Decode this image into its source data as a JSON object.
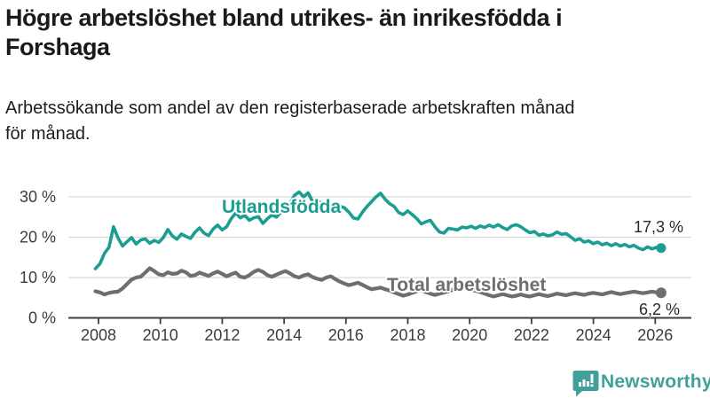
{
  "header": {
    "title_line1": "Högre arbetslöshet bland utrikes- än inrikesfödda i",
    "title_line2": "Forshaga",
    "subtitle_line1": "Arbetssökande som andel av den registerbaserade arbetskraften månad",
    "subtitle_line2": "för månad."
  },
  "branding": {
    "name": "Newsworthy",
    "color": "#41a09a",
    "icon": "bar-chart-speech-bubble-icon"
  },
  "chart_data": {
    "type": "line",
    "title": "Högre arbetslöshet bland utrikes- än inrikesfödda i Forshaga",
    "subtitle": "Arbetssökande som andel av den registerbaserade arbetskraften månad för månad.",
    "grid": "horizontal",
    "legend_position": "inline-labels",
    "colors": {
      "gridline": "#d9d9d9",
      "axis": "#3f3f3f",
      "tick_text": "#3c3c3c"
    },
    "x_axis": {
      "ticks": [
        2008,
        2010,
        2012,
        2014,
        2016,
        2018,
        2020,
        2022,
        2024,
        2026
      ],
      "range": [
        2007.0,
        2027.2
      ]
    },
    "y_axis": {
      "tick_values": [
        0,
        10,
        20,
        30
      ],
      "tick_labels": [
        "0 %",
        "10 %",
        "20 %",
        "30 %"
      ],
      "unit": "%",
      "range": [
        0,
        34.8
      ]
    },
    "series": [
      {
        "name": "Utlandsfödda",
        "color": "#1a9e92",
        "start_year": 2007.9,
        "end_year": 2026.19,
        "end_value": 17.3,
        "end_label": "17,3 %",
        "values": [
          12.2,
          13.4,
          16.0,
          17.5,
          22.6,
          19.8,
          17.8,
          18.9,
          19.9,
          18.3,
          19.3,
          19.6,
          18.5,
          19.2,
          18.7,
          19.9,
          21.9,
          20.3,
          19.5,
          20.8,
          20.2,
          19.7,
          21.2,
          22.3,
          21.0,
          20.4,
          22.0,
          23.0,
          21.8,
          22.6,
          24.6,
          26.0,
          24.8,
          25.4,
          24.2,
          24.8,
          25.1,
          23.4,
          24.6,
          25.5,
          25.0,
          26.2,
          27.3,
          28.4,
          30.4,
          31.2,
          30.0,
          31.0,
          28.8,
          29.3,
          28.2,
          28.8,
          27.8,
          28.4,
          27.7,
          27.3,
          26.2,
          24.8,
          24.5,
          26.2,
          27.6,
          28.8,
          30.0,
          30.9,
          29.4,
          28.3,
          27.6,
          26.1,
          25.6,
          26.5,
          25.6,
          24.6,
          23.3,
          23.8,
          24.2,
          22.6,
          21.3,
          21.0,
          22.2,
          22.0,
          21.8,
          22.5,
          22.3,
          22.7,
          22.2,
          22.8,
          22.4,
          23.0,
          22.5,
          23.1,
          22.4,
          21.9,
          22.8,
          23.1,
          22.6,
          21.8,
          21.1,
          21.4,
          20.5,
          20.8,
          20.3,
          20.6,
          21.3,
          20.7,
          20.9,
          20.1,
          19.2,
          19.6,
          18.8,
          19.1,
          18.4,
          18.8,
          18.1,
          18.5,
          17.9,
          18.4,
          17.8,
          18.2,
          17.6,
          18.0,
          17.3,
          16.9,
          17.6,
          17.1,
          17.5,
          17.3
        ]
      },
      {
        "name": "Total arbetslöshet",
        "color": "#6e6e72",
        "start_year": 2007.9,
        "end_year": 2026.19,
        "end_value": 6.2,
        "end_label": "6,2 %",
        "values": [
          6.6,
          6.3,
          5.8,
          6.2,
          6.4,
          6.5,
          7.3,
          8.4,
          9.5,
          10.0,
          10.2,
          11.2,
          12.3,
          11.6,
          10.8,
          10.6,
          11.3,
          10.9,
          11.0,
          11.7,
          11.3,
          10.4,
          10.6,
          11.2,
          10.8,
          10.4,
          11.0,
          11.5,
          10.9,
          10.3,
          10.8,
          11.2,
          10.2,
          10.0,
          10.6,
          11.4,
          11.9,
          11.4,
          10.6,
          10.2,
          10.7,
          11.2,
          11.6,
          11.0,
          10.3,
          10.0,
          10.5,
          10.8,
          10.1,
          9.7,
          9.4,
          10.0,
          10.3,
          9.6,
          9.0,
          8.5,
          8.1,
          8.4,
          8.7,
          8.2,
          7.6,
          7.1,
          7.3,
          7.5,
          7.1,
          6.8,
          6.3,
          5.9,
          5.5,
          5.8,
          6.2,
          6.6,
          6.9,
          6.4,
          6.0,
          5.7,
          6.0,
          6.3,
          6.6,
          7.0,
          7.5,
          7.8,
          7.4,
          7.0,
          6.7,
          6.4,
          6.0,
          5.6,
          5.3,
          5.6,
          5.9,
          5.6,
          5.3,
          5.5,
          5.8,
          5.5,
          5.3,
          5.6,
          5.9,
          5.6,
          5.4,
          5.7,
          6.0,
          5.8,
          5.6,
          5.9,
          6.1,
          5.9,
          5.7,
          6.0,
          6.2,
          6.0,
          5.8,
          6.1,
          6.4,
          6.1,
          5.9,
          6.1,
          6.3,
          6.5,
          6.3,
          6.1,
          6.3,
          6.5,
          6.3,
          6.2
        ]
      }
    ]
  }
}
